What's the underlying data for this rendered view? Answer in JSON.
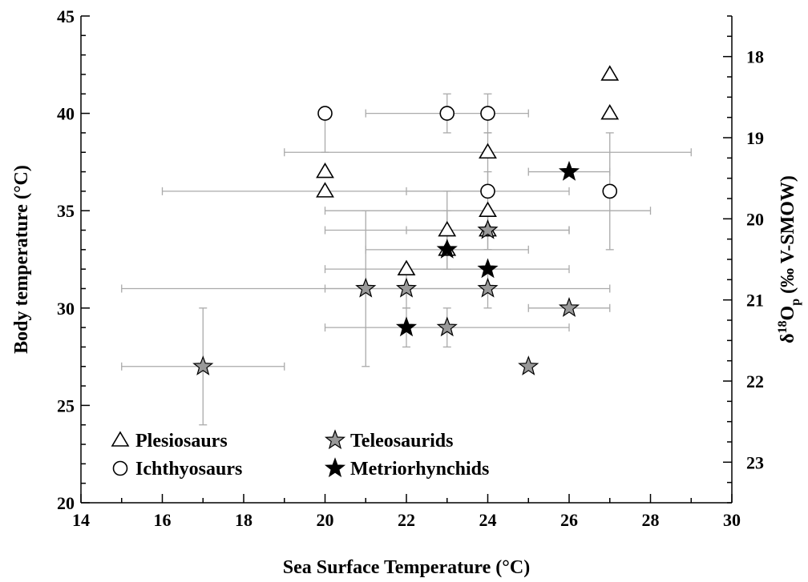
{
  "chart_data": {
    "type": "scatter",
    "xlabel": "Sea Surface Temperature (°C)",
    "ylabel": "Body temperature (°C)",
    "y2label": {
      "pre": "δ",
      "sup": "18",
      "mid": "O",
      "sub": "p",
      "post": " (‰ V-SMOW)"
    },
    "xlim": [
      14,
      30
    ],
    "ylim": [
      20,
      45
    ],
    "y2lim": [
      17.5,
      23.5
    ],
    "x_ticks": [
      "14",
      "16",
      "18",
      "20",
      "22",
      "24",
      "26",
      "28",
      "30"
    ],
    "y_ticks": [
      "20",
      "25",
      "30",
      "35",
      "40",
      "45"
    ],
    "y2_ticks": [
      "18",
      "19",
      "20",
      "21",
      "22",
      "23"
    ],
    "grid": false,
    "legend_position": "bottom-left",
    "series": [
      {
        "name": "Plesiosaurs",
        "marker": "triangle-open",
        "color": "#000000",
        "points": [
          {
            "x": 20,
            "y": 37
          },
          {
            "x": 20,
            "y": 36,
            "xerr": [
              16,
              24
            ]
          },
          {
            "x": 22,
            "y": 32,
            "xerr": [
              20,
              24
            ]
          },
          {
            "x": 23,
            "y": 34,
            "xerr": [
              20,
              26
            ],
            "yerr": [
              32,
              36
            ]
          },
          {
            "x": 23,
            "y": 33
          },
          {
            "x": 24,
            "y": 38,
            "xerr": [
              19,
              29
            ],
            "yerr": [
              36,
              39
            ]
          },
          {
            "x": 24,
            "y": 35,
            "xerr": [
              20,
              28
            ],
            "yerr": [
              33,
              37
            ]
          },
          {
            "x": 24,
            "y": 34
          },
          {
            "x": 27,
            "y": 42
          },
          {
            "x": 27,
            "y": 40
          }
        ]
      },
      {
        "name": "Ichthyosaurs",
        "marker": "circle-open",
        "color": "#000000",
        "points": [
          {
            "x": 20,
            "y": 40,
            "yerr": [
              38,
              40
            ]
          },
          {
            "x": 23,
            "y": 40,
            "xerr": [
              21,
              25
            ],
            "yerr": [
              39,
              41
            ]
          },
          {
            "x": 24,
            "y": 40,
            "yerr": [
              39,
              41
            ]
          },
          {
            "x": 24,
            "y": 36,
            "xerr": [
              22,
              26
            ]
          },
          {
            "x": 27,
            "y": 36,
            "yerr": [
              33,
              39
            ]
          }
        ]
      },
      {
        "name": "Teleosaurids",
        "marker": "star",
        "color": "#999999",
        "points": [
          {
            "x": 17,
            "y": 27,
            "xerr": [
              15,
              19
            ],
            "yerr": [
              24,
              30
            ]
          },
          {
            "x": 21,
            "y": 31,
            "xerr": [
              15,
              27
            ],
            "yerr": [
              27,
              35
            ]
          },
          {
            "x": 22,
            "y": 31,
            "xerr": [
              20,
              24
            ],
            "yerr": [
              30,
              32
            ]
          },
          {
            "x": 23,
            "y": 29,
            "xerr": [
              20,
              26
            ],
            "yerr": [
              28,
              30
            ]
          },
          {
            "x": 24,
            "y": 34,
            "xerr": [
              22,
              26
            ],
            "yerr": [
              33,
              35
            ]
          },
          {
            "x": 24,
            "y": 31,
            "yerr": [
              30,
              32
            ]
          },
          {
            "x": 25,
            "y": 27
          },
          {
            "x": 26,
            "y": 30,
            "xerr": [
              25,
              27
            ]
          }
        ]
      },
      {
        "name": "Metriorhynchids",
        "marker": "star",
        "color": "#000000",
        "points": [
          {
            "x": 22,
            "y": 29,
            "yerr": [
              28,
              30
            ]
          },
          {
            "x": 23,
            "y": 33,
            "xerr": [
              21,
              25
            ],
            "yerr": [
              32,
              35
            ]
          },
          {
            "x": 24,
            "y": 32,
            "xerr": [
              22,
              26
            ]
          },
          {
            "x": 26,
            "y": 37,
            "xerr": [
              25,
              27
            ]
          }
        ]
      }
    ]
  }
}
